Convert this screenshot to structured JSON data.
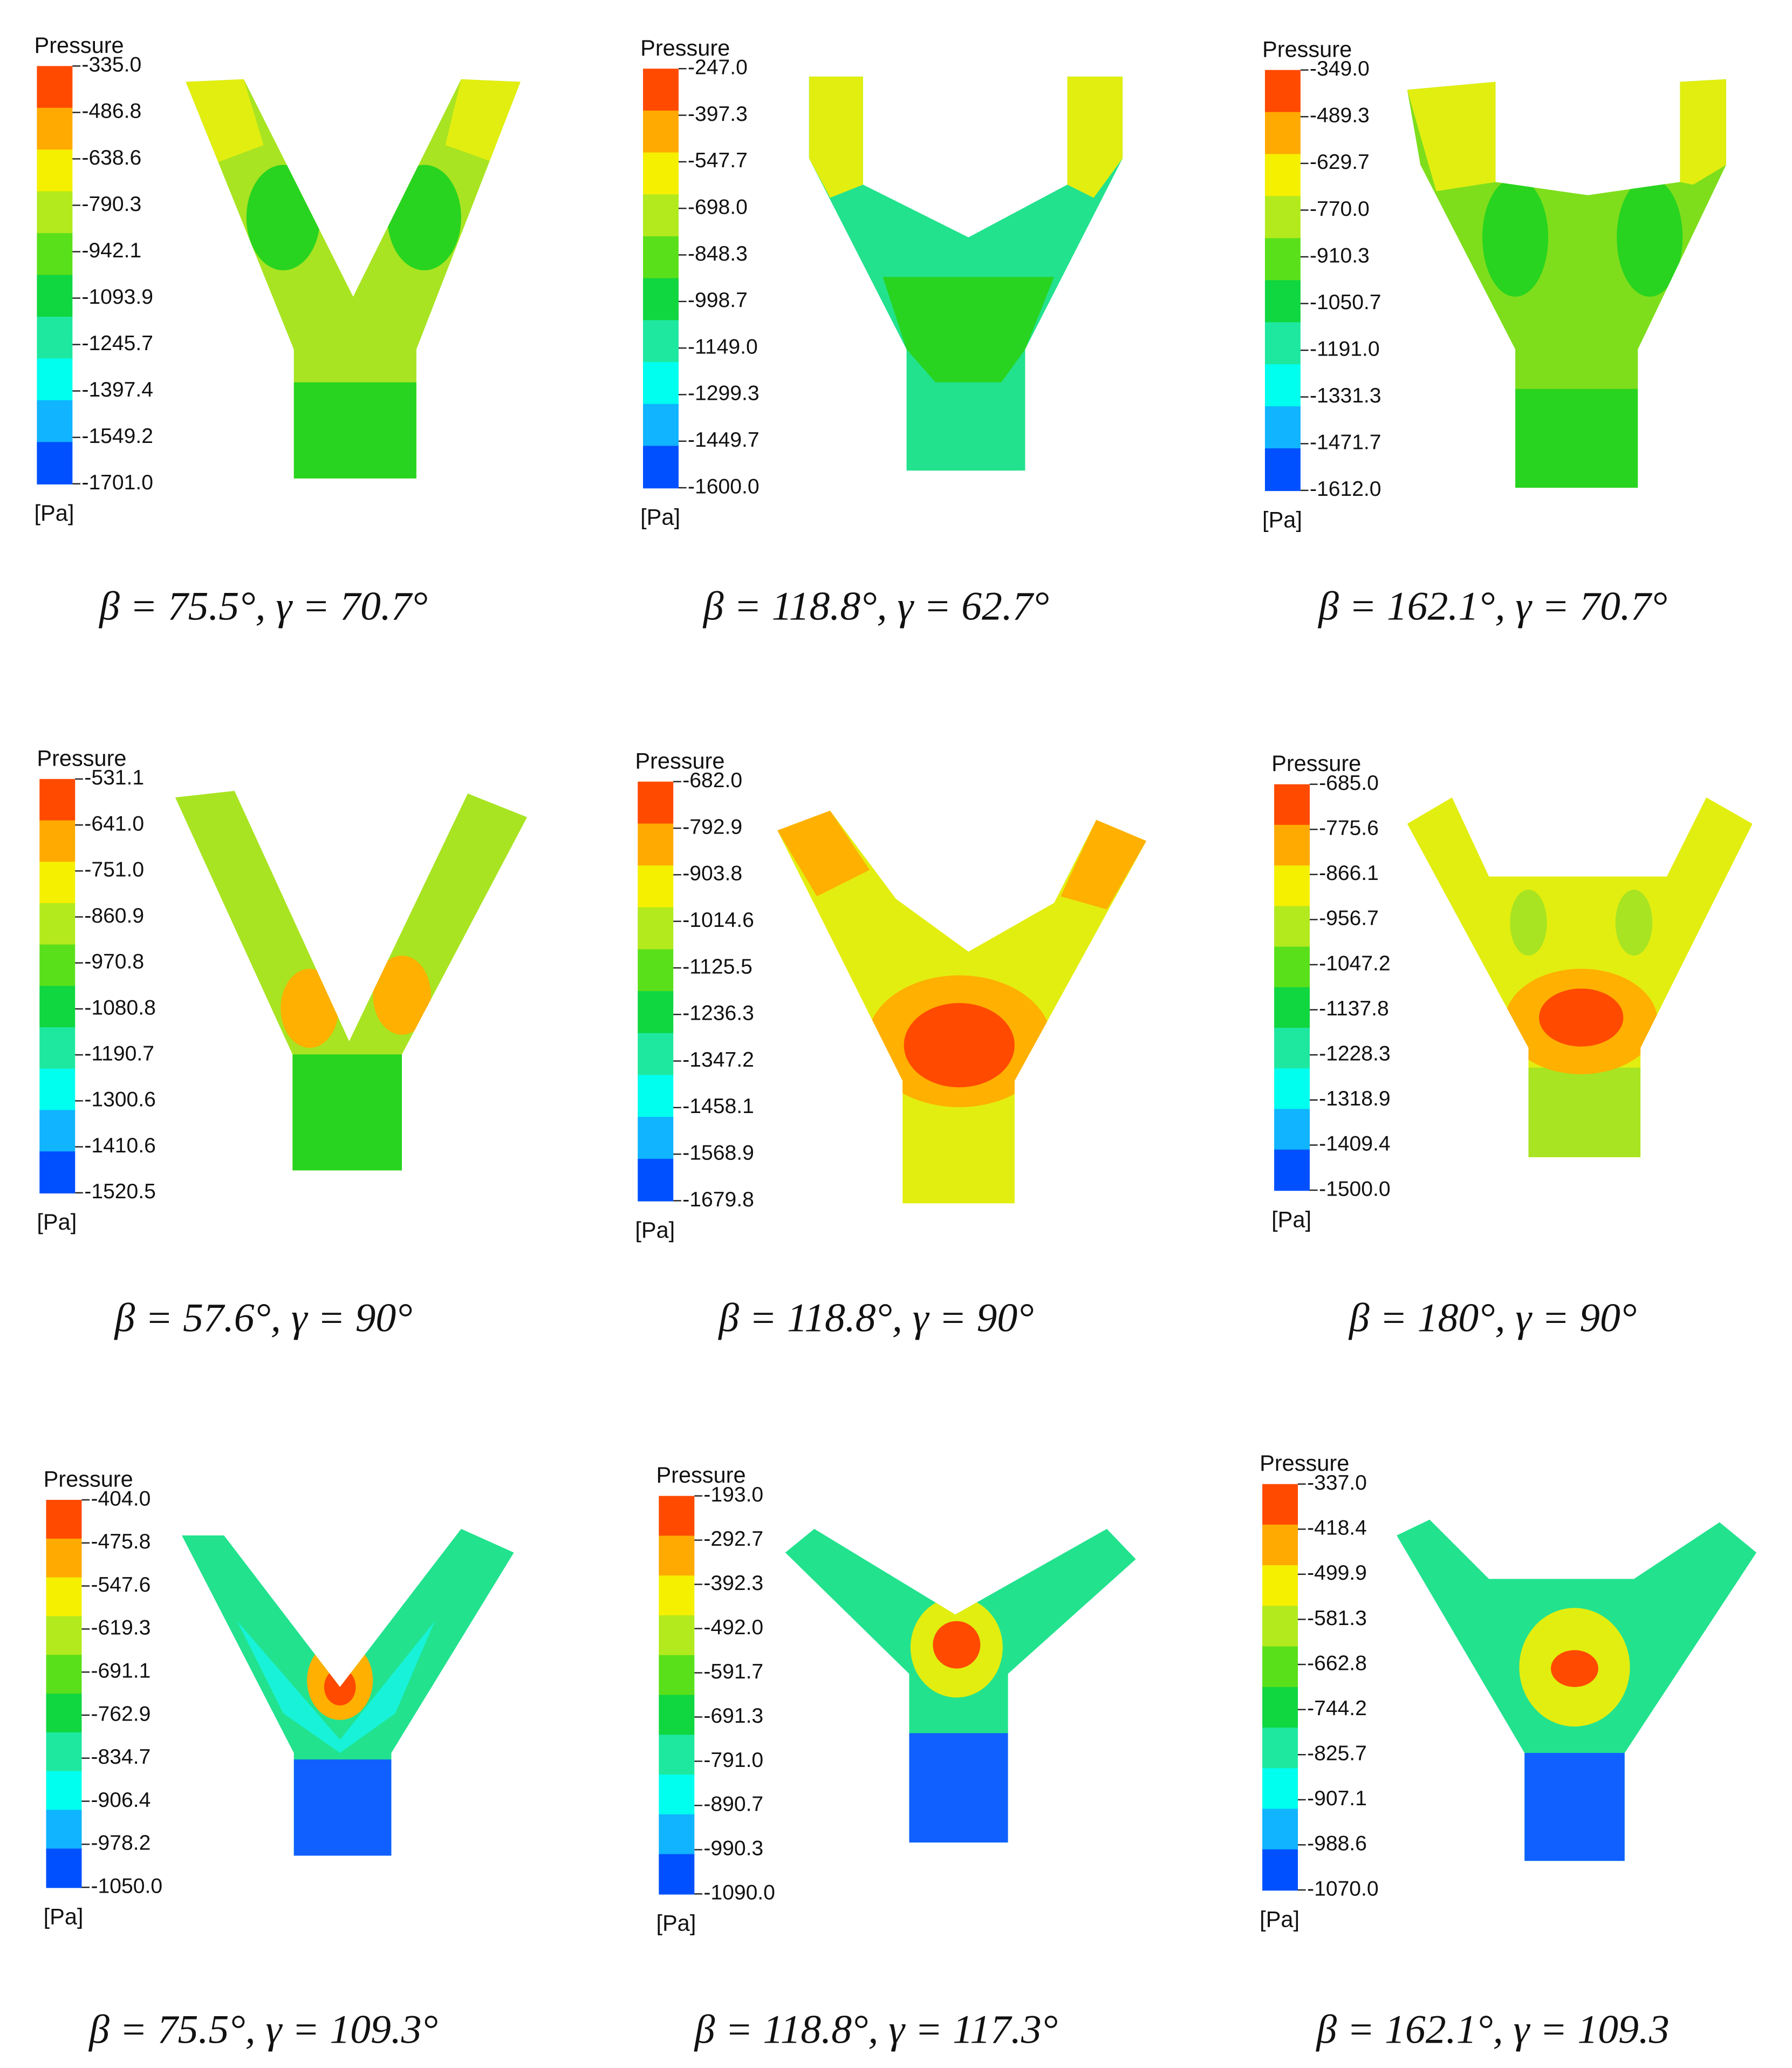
{
  "panels": [
    {
      "title": "Pressure",
      "levels": [
        "-335.0",
        "-486.8",
        "-638.6",
        "-790.3",
        "-942.1",
        "-1093.9",
        "-1245.7",
        "-1397.4",
        "-1549.2",
        "-1701.0"
      ],
      "unit": "[Pa]",
      "caption": "β = 75.5°, γ = 70.7°"
    },
    {
      "title": "Pressure",
      "levels": [
        "-247.0",
        "-397.3",
        "-547.7",
        "-698.0",
        "-848.3",
        "-998.7",
        "-1149.0",
        "-1299.3",
        "-1449.7",
        "-1600.0"
      ],
      "unit": "[Pa]",
      "caption": "β = 118.8°, γ = 62.7°"
    },
    {
      "title": "Pressure",
      "levels": [
        "-349.0",
        "-489.3",
        "-629.7",
        "-770.0",
        "-910.3",
        "-1050.7",
        "-1191.0",
        "-1331.3",
        "-1471.7",
        "-1612.0"
      ],
      "unit": "[Pa]",
      "caption": "β = 162.1°, γ = 70.7°"
    },
    {
      "title": "Pressure",
      "levels": [
        "-531.1",
        "-641.0",
        "-751.0",
        "-860.9",
        "-970.8",
        "-1080.8",
        "-1190.7",
        "-1300.6",
        "-1410.6",
        "-1520.5"
      ],
      "unit": "[Pa]",
      "caption": "β = 57.6°, γ = 90°"
    },
    {
      "title": "Pressure",
      "levels": [
        "-682.0",
        "-792.9",
        "-903.8",
        "-1014.6",
        "-1125.5",
        "-1236.3",
        "-1347.2",
        "-1458.1",
        "-1568.9",
        "-1679.8"
      ],
      "unit": "[Pa]",
      "caption": "β = 118.8°, γ = 90°"
    },
    {
      "title": "Pressure",
      "levels": [
        "-685.0",
        "-775.6",
        "-866.1",
        "-956.7",
        "-1047.2",
        "-1137.8",
        "-1228.3",
        "-1318.9",
        "-1409.4",
        "-1500.0"
      ],
      "unit": "[Pa]",
      "caption": "β = 180°, γ = 90°"
    },
    {
      "title": "Pressure",
      "levels": [
        "-404.0",
        "-475.8",
        "-547.6",
        "-619.3",
        "-691.1",
        "-762.9",
        "-834.7",
        "-906.4",
        "-978.2",
        "-1050.0"
      ],
      "unit": "[Pa]",
      "caption": "β = 75.5°, γ = 109.3°"
    },
    {
      "title": "Pressure",
      "levels": [
        "-193.0",
        "-292.7",
        "-392.3",
        "-492.0",
        "-591.7",
        "-691.3",
        "-791.0",
        "-890.7",
        "-990.3",
        "-1090.0"
      ],
      "unit": "[Pa]",
      "caption": "β = 118.8°, γ = 117.3°"
    },
    {
      "title": "Pressure",
      "levels": [
        "-337.0",
        "-418.4",
        "-499.9",
        "-581.3",
        "-662.8",
        "-744.2",
        "-825.7",
        "-907.1",
        "-988.6",
        "-1070.0"
      ],
      "unit": "[Pa]",
      "caption": "β = 162.1°, γ = 109.3"
    }
  ]
}
